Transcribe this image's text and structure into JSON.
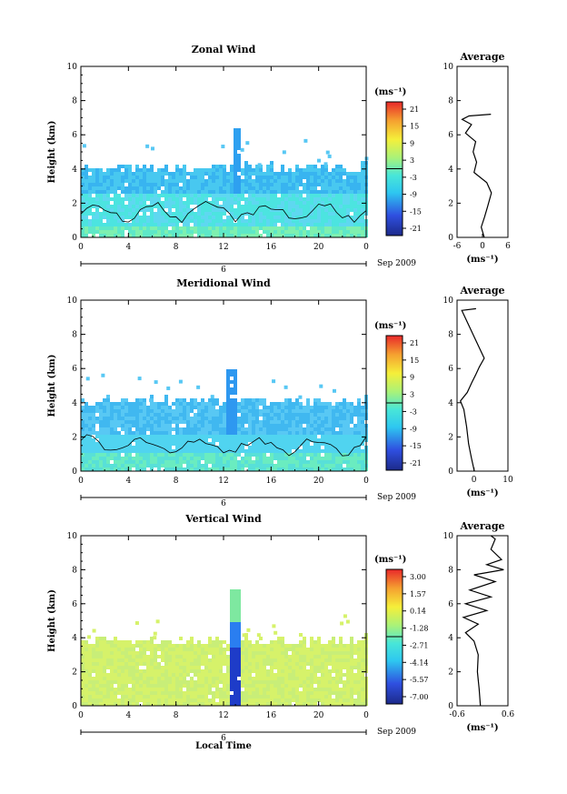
{
  "chart_data": [
    {
      "type": "heatmap",
      "title": "Zonal Wind",
      "ylabel": "Height (km)",
      "xlabel": "",
      "x_ticks": [
        "0",
        "4",
        "8",
        "12",
        "16",
        "20",
        "0"
      ],
      "y_ticks": [
        "0",
        "2",
        "4",
        "6",
        "8",
        "10"
      ],
      "xlim": [
        0,
        24
      ],
      "ylim": [
        0,
        10
      ],
      "date_label": "6",
      "date_right": "Sep 2009",
      "colorbar": {
        "unit": "(ms⁻¹)",
        "ticks": [
          "21",
          "15",
          "9",
          "3",
          "-3",
          "-9",
          "-15",
          "-21"
        ]
      },
      "data_top_km": 4.2,
      "spike": {
        "x": 13,
        "top_km": 6.5
      },
      "average": {
        "title": "Average",
        "xlabel": "(ms⁻¹)",
        "x_ticks": [
          "-6",
          "0",
          "6"
        ],
        "xlim": [
          -6,
          6
        ],
        "profile": [
          [
            0.4,
            0
          ],
          [
            -0.3,
            0.6
          ],
          [
            0.5,
            1.2
          ],
          [
            1.2,
            1.8
          ],
          [
            2.1,
            2.6
          ],
          [
            1.0,
            3.2
          ],
          [
            -2.0,
            3.8
          ],
          [
            -1.4,
            4.4
          ],
          [
            -2.2,
            5.0
          ],
          [
            -1.6,
            5.6
          ],
          [
            -4.0,
            6.1
          ],
          [
            -2.6,
            6.6
          ],
          [
            -4.8,
            6.9
          ],
          [
            -3.2,
            7.1
          ],
          [
            2.0,
            7.2
          ]
        ]
      }
    },
    {
      "type": "heatmap",
      "title": "Meridional Wind",
      "ylabel": "Height (km)",
      "xlabel": "",
      "x_ticks": [
        "0",
        "4",
        "8",
        "12",
        "16",
        "20",
        "0"
      ],
      "y_ticks": [
        "0",
        "2",
        "4",
        "6",
        "8",
        "10"
      ],
      "xlim": [
        0,
        24
      ],
      "ylim": [
        0,
        10
      ],
      "date_label": "6",
      "date_right": "Sep 2009",
      "colorbar": {
        "unit": "(ms⁻¹)",
        "ticks": [
          "21",
          "15",
          "9",
          "3",
          "-3",
          "-9",
          "-15",
          "-21"
        ]
      },
      "data_top_km": 4.2,
      "spike": {
        "x": 12.6,
        "top_km": 6.0
      },
      "average": {
        "title": "Average",
        "xlabel": "(ms⁻¹)",
        "x_ticks": [
          "0",
          "10"
        ],
        "xlim": [
          -5,
          10
        ],
        "profile": [
          [
            0.1,
            0
          ],
          [
            -0.8,
            0.8
          ],
          [
            -1.6,
            1.6
          ],
          [
            -2.2,
            2.6
          ],
          [
            -3.0,
            3.6
          ],
          [
            -4.0,
            4.1
          ],
          [
            -2.0,
            4.6
          ],
          [
            -0.6,
            5.2
          ],
          [
            0.4,
            5.6
          ],
          [
            1.6,
            6.1
          ],
          [
            3.0,
            6.6
          ],
          [
            -3.6,
            9.4
          ],
          [
            0.6,
            9.5
          ]
        ]
      }
    },
    {
      "type": "heatmap",
      "title": "Vertical Wind",
      "ylabel": "Height (km)",
      "xlabel": "Local Time",
      "x_ticks": [
        "0",
        "4",
        "8",
        "12",
        "16",
        "20",
        "0"
      ],
      "y_ticks": [
        "0",
        "2",
        "4",
        "6",
        "8",
        "10"
      ],
      "xlim": [
        0,
        24
      ],
      "ylim": [
        0,
        10
      ],
      "date_label": "6",
      "date_right": "Sep 2009",
      "colorbar": {
        "unit": "(ms⁻¹)",
        "ticks": [
          "3.00",
          "1.57",
          "0.14",
          "-1.28",
          "-2.71",
          "-4.14",
          "-5.57",
          "-7.00"
        ]
      },
      "data_top_km": 4.0,
      "spike": {
        "x": 12.7,
        "top_km": 7.0
      },
      "average": {
        "title": "Average",
        "xlabel": "(ms⁻¹)",
        "x_ticks": [
          "-0.6",
          "0.6"
        ],
        "xlim": [
          -0.6,
          0.6
        ],
        "profile": [
          [
            -0.05,
            0
          ],
          [
            -0.08,
            1.0
          ],
          [
            -0.12,
            2.0
          ],
          [
            -0.1,
            3.0
          ],
          [
            -0.2,
            3.8
          ],
          [
            -0.4,
            4.3
          ],
          [
            -0.1,
            4.8
          ],
          [
            -0.45,
            5.2
          ],
          [
            0.1,
            5.6
          ],
          [
            -0.4,
            6.0
          ],
          [
            0.2,
            6.4
          ],
          [
            -0.3,
            6.8
          ],
          [
            0.3,
            7.3
          ],
          [
            -0.2,
            7.7
          ],
          [
            0.5,
            8.0
          ],
          [
            0.1,
            8.3
          ],
          [
            0.45,
            8.6
          ],
          [
            0.2,
            9.2
          ],
          [
            0.3,
            9.8
          ],
          [
            0.2,
            10
          ]
        ]
      }
    }
  ]
}
